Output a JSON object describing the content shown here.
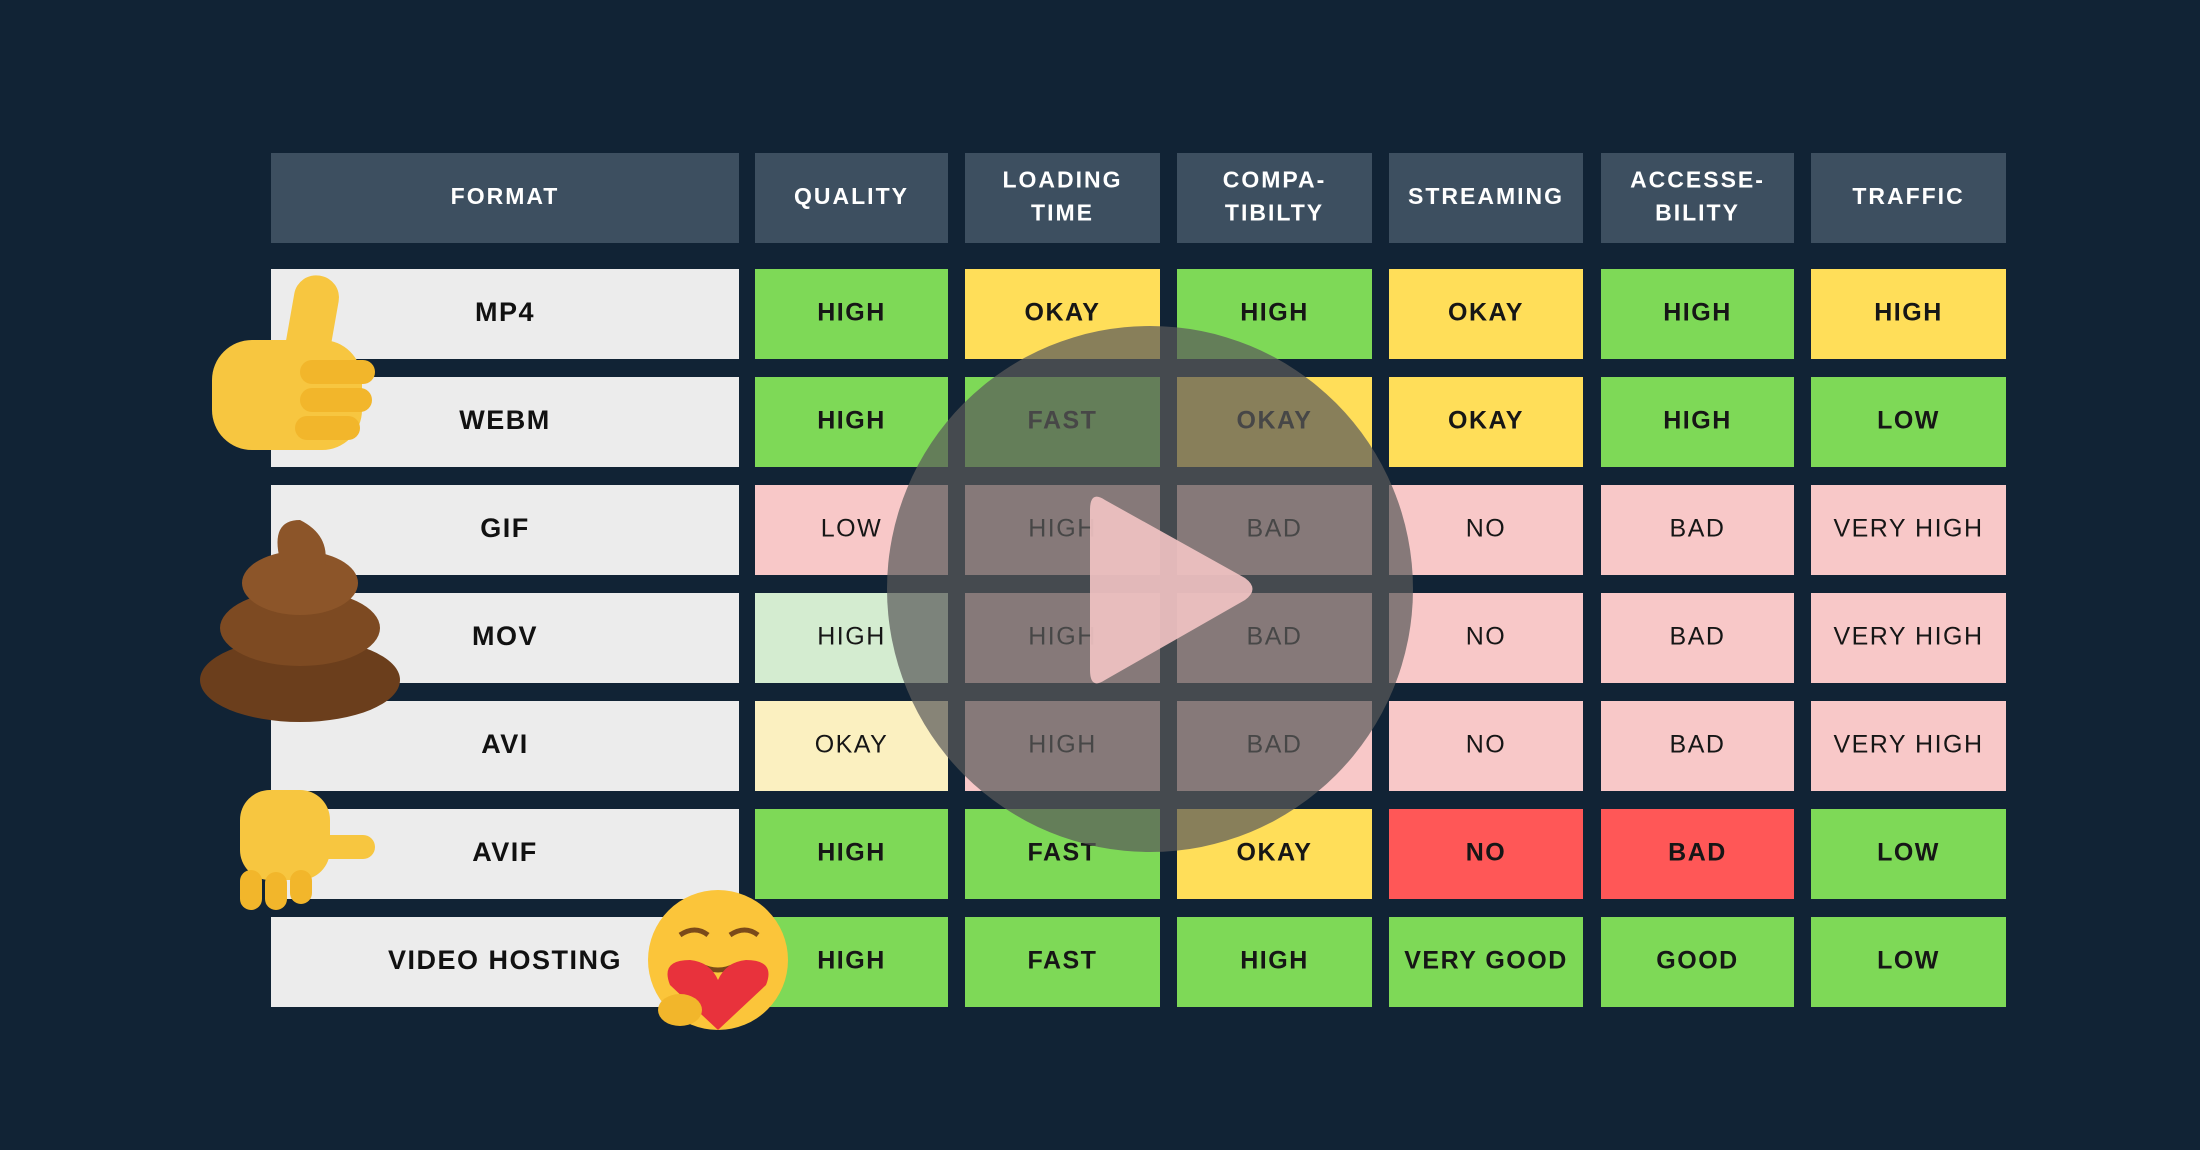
{
  "table": {
    "headers": [
      [
        "FORMAT"
      ],
      [
        "QUALITY"
      ],
      [
        "LOADING",
        "TIME"
      ],
      [
        "COMPA-",
        "TIBILTY"
      ],
      [
        "STREAMING"
      ],
      [
        "ACCESSE-",
        "BILITY"
      ],
      [
        "TRAFFIC"
      ]
    ],
    "rows": [
      {
        "label": "MP4",
        "cells": [
          {
            "text": "HIGH",
            "color": "#7ed957",
            "bold": true
          },
          {
            "text": "OKAY",
            "color": "#ffde59",
            "bold": true
          },
          {
            "text": "HIGH",
            "color": "#7ed957",
            "bold": true
          },
          {
            "text": "OKAY",
            "color": "#ffde59",
            "bold": true
          },
          {
            "text": "HIGH",
            "color": "#7ed957",
            "bold": true
          },
          {
            "text": "HIGH",
            "color": "#ffde59",
            "bold": true
          }
        ]
      },
      {
        "label": "WEBM",
        "cells": [
          {
            "text": "HIGH",
            "color": "#7ed957",
            "bold": true
          },
          {
            "text": "FAST",
            "color": "#7ed957",
            "bold": true
          },
          {
            "text": "OKAY",
            "color": "#ffde59",
            "bold": true
          },
          {
            "text": "OKAY",
            "color": "#ffde59",
            "bold": true
          },
          {
            "text": "HIGH",
            "color": "#7ed957",
            "bold": true
          },
          {
            "text": "LOW",
            "color": "#7ed957",
            "bold": true
          }
        ]
      },
      {
        "label": "GIF",
        "cells": [
          {
            "text": "LOW",
            "color": "#f8c8c8",
            "bold": false
          },
          {
            "text": "HIGH",
            "color": "#f8c8c8",
            "bold": false
          },
          {
            "text": "BAD",
            "color": "#f8c8c8",
            "bold": false
          },
          {
            "text": "NO",
            "color": "#f8c8c8",
            "bold": false
          },
          {
            "text": "BAD",
            "color": "#f8c8c8",
            "bold": false
          },
          {
            "text": "VERY HIGH",
            "color": "#f8c8c8",
            "bold": false
          }
        ]
      },
      {
        "label": "MOV",
        "cells": [
          {
            "text": "HIGH",
            "color": "#d4ecd0",
            "bold": false
          },
          {
            "text": "HIGH",
            "color": "#f8c8c8",
            "bold": false
          },
          {
            "text": "BAD",
            "color": "#f8c8c8",
            "bold": false
          },
          {
            "text": "NO",
            "color": "#f8c8c8",
            "bold": false
          },
          {
            "text": "BAD",
            "color": "#f8c8c8",
            "bold": false
          },
          {
            "text": "VERY HIGH",
            "color": "#f8c8c8",
            "bold": false
          }
        ]
      },
      {
        "label": "AVI",
        "cells": [
          {
            "text": "OKAY",
            "color": "#fbf0c0",
            "bold": false
          },
          {
            "text": "HIGH",
            "color": "#f8c8c8",
            "bold": false
          },
          {
            "text": "BAD",
            "color": "#f8c8c8",
            "bold": false
          },
          {
            "text": "NO",
            "color": "#f8c8c8",
            "bold": false
          },
          {
            "text": "BAD",
            "color": "#f8c8c8",
            "bold": false
          },
          {
            "text": "VERY HIGH",
            "color": "#f8c8c8",
            "bold": false
          }
        ]
      },
      {
        "label": "AVIF",
        "cells": [
          {
            "text": "HIGH",
            "color": "#7ed957",
            "bold": true
          },
          {
            "text": "FAST",
            "color": "#7ed957",
            "bold": true
          },
          {
            "text": "OKAY",
            "color": "#ffde59",
            "bold": true
          },
          {
            "text": "NO",
            "color": "#ff5757",
            "bold": true
          },
          {
            "text": "BAD",
            "color": "#ff5757",
            "bold": true
          },
          {
            "text": "LOW",
            "color": "#7ed957",
            "bold": true
          }
        ]
      },
      {
        "label": "VIDEO HOSTING",
        "cells": [
          {
            "text": "HIGH",
            "color": "#7ed957",
            "bold": true
          },
          {
            "text": "FAST",
            "color": "#7ed957",
            "bold": true
          },
          {
            "text": "HIGH",
            "color": "#7ed957",
            "bold": true
          },
          {
            "text": "VERY GOOD",
            "color": "#7ed957",
            "bold": true
          },
          {
            "text": "GOOD",
            "color": "#7ed957",
            "bold": true
          },
          {
            "text": "LOW",
            "color": "#7ed957",
            "bold": true
          }
        ]
      }
    ]
  }
}
